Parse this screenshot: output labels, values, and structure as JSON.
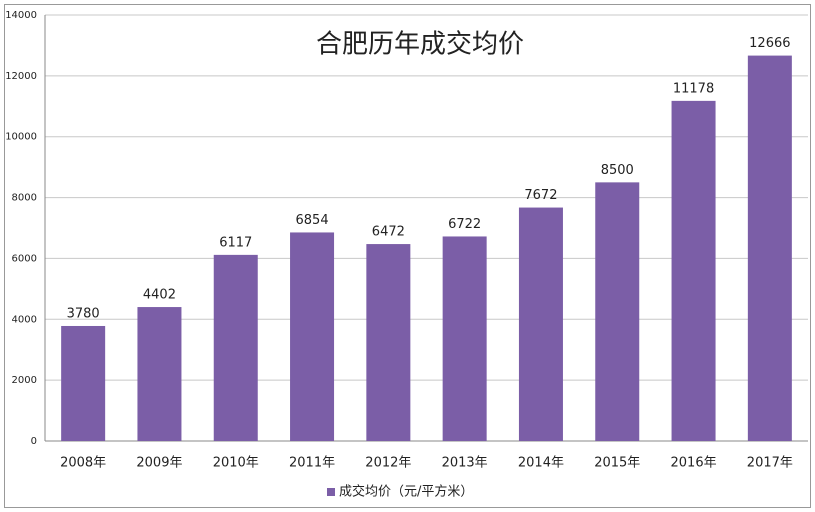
{
  "chart_data": {
    "type": "bar",
    "title": "合肥历年成交均价",
    "categories": [
      "2008年",
      "2009年",
      "2010年",
      "2011年",
      "2012年",
      "2013年",
      "2014年",
      "2015年",
      "2016年",
      "2017年"
    ],
    "series": [
      {
        "name": "成交均价（元/平方米）",
        "color": "#7b5ea7",
        "values": [
          3780,
          4402,
          6117,
          6854,
          6472,
          6722,
          7672,
          8500,
          11178,
          12666
        ]
      }
    ],
    "ylim": [
      0,
      14000
    ],
    "yticks": [
      0,
      2000,
      4000,
      6000,
      8000,
      10000,
      12000,
      14000
    ],
    "grid": true,
    "legend": "bottom"
  }
}
